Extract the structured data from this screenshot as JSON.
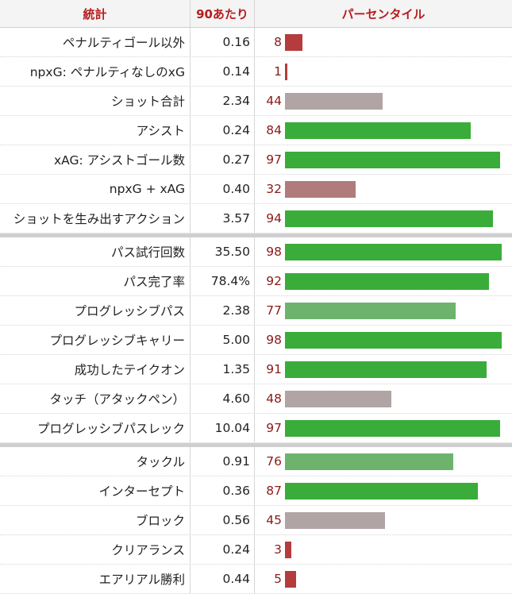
{
  "header": {
    "stat": "統計",
    "per90": "90あたり",
    "percentile": "パーセンタイル"
  },
  "colors": {
    "elite": "#3aac3a",
    "good": "#6db36d",
    "avg": "#b0a4a4",
    "below": "#b07b7b",
    "poor": "#b43c3c"
  },
  "groups": [
    [
      {
        "stat": "ペナルティゴール以外",
        "per90": "0.16",
        "percentile": 8,
        "tier": "poor"
      },
      {
        "stat": "npxG: ペナルティなしのxG",
        "per90": "0.14",
        "percentile": 1,
        "tier": "poor"
      },
      {
        "stat": "ショット合計",
        "per90": "2.34",
        "percentile": 44,
        "tier": "avg"
      },
      {
        "stat": "アシスト",
        "per90": "0.24",
        "percentile": 84,
        "tier": "elite"
      },
      {
        "stat": "xAG: アシストゴール数",
        "per90": "0.27",
        "percentile": 97,
        "tier": "elite"
      },
      {
        "stat": "npxG + xAG",
        "per90": "0.40",
        "percentile": 32,
        "tier": "below"
      },
      {
        "stat": "ショットを生み出すアクション",
        "per90": "3.57",
        "percentile": 94,
        "tier": "elite"
      }
    ],
    [
      {
        "stat": "パス試行回数",
        "per90": "35.50",
        "percentile": 98,
        "tier": "elite"
      },
      {
        "stat": "パス完了率",
        "per90": "78.4%",
        "percentile": 92,
        "tier": "elite"
      },
      {
        "stat": "プログレッシブパス",
        "per90": "2.38",
        "percentile": 77,
        "tier": "good"
      },
      {
        "stat": "プログレッシブキャリー",
        "per90": "5.00",
        "percentile": 98,
        "tier": "elite"
      },
      {
        "stat": "成功したテイクオン",
        "per90": "1.35",
        "percentile": 91,
        "tier": "elite"
      },
      {
        "stat": "タッチ（アタックペン）",
        "per90": "4.60",
        "percentile": 48,
        "tier": "avg"
      },
      {
        "stat": "プログレッシブパスレック",
        "per90": "10.04",
        "percentile": 97,
        "tier": "elite"
      }
    ],
    [
      {
        "stat": "タックル",
        "per90": "0.91",
        "percentile": 76,
        "tier": "good"
      },
      {
        "stat": "インターセプト",
        "per90": "0.36",
        "percentile": 87,
        "tier": "elite"
      },
      {
        "stat": "ブロック",
        "per90": "0.56",
        "percentile": 45,
        "tier": "avg"
      },
      {
        "stat": "クリアランス",
        "per90": "0.24",
        "percentile": 3,
        "tier": "poor"
      },
      {
        "stat": "エアリアル勝利",
        "per90": "0.44",
        "percentile": 5,
        "tier": "poor"
      }
    ]
  ]
}
